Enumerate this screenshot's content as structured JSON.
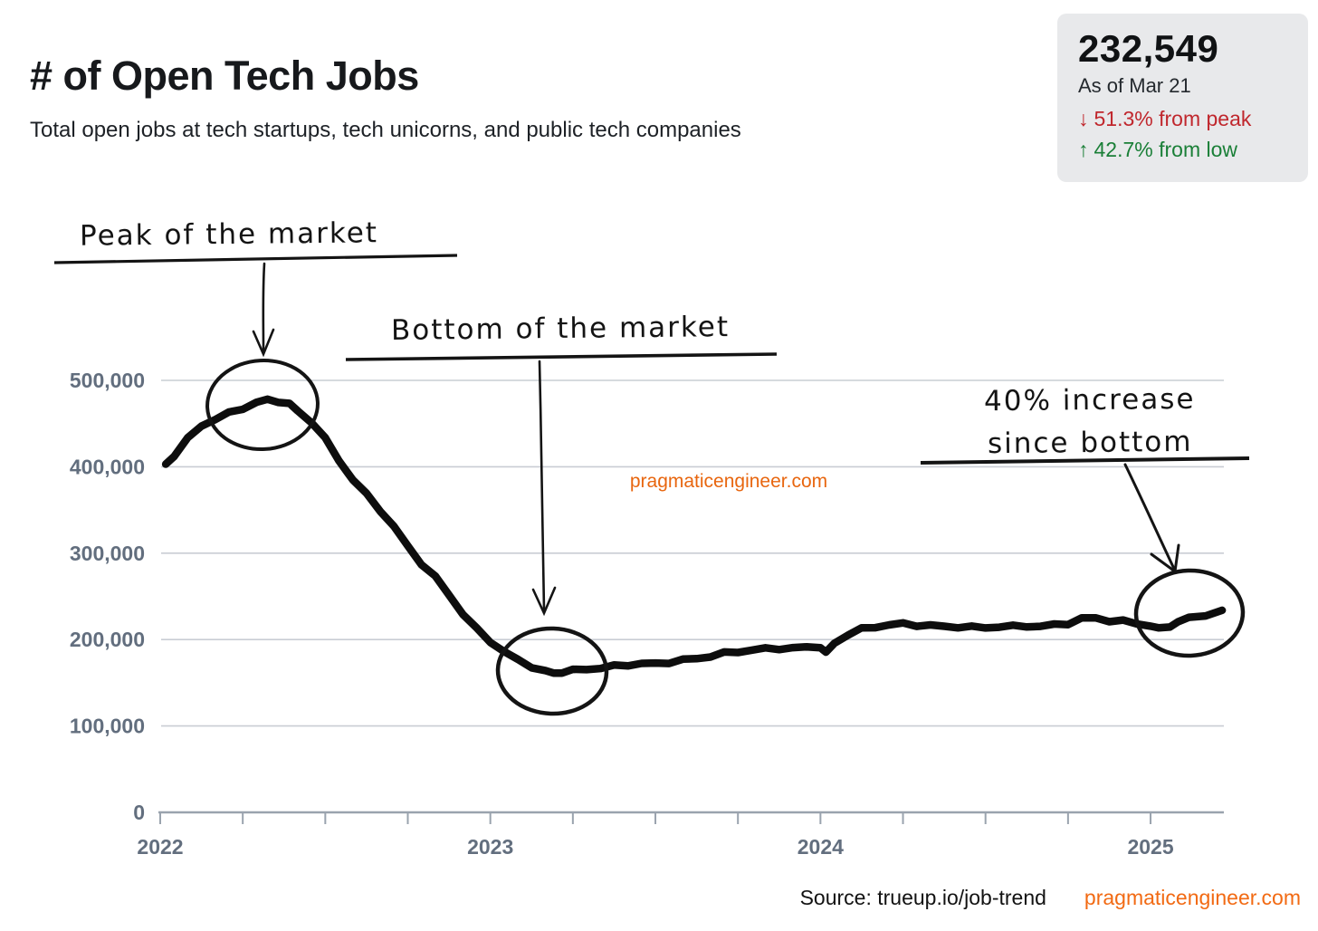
{
  "header": {
    "title": "# of Open Tech Jobs",
    "subtitle": "Total open jobs at tech startups, tech unicorns, and public tech companies"
  },
  "stats_card": {
    "value": "232,549",
    "as_of": "As of Mar 21",
    "down_arrow": "↓",
    "from_peak": "51.3% from peak",
    "up_arrow": "↑",
    "from_low": "42.7% from low",
    "down_color": "#c0272d",
    "up_color": "#1a7f37"
  },
  "annotations": {
    "peak_label": "Peak of the market",
    "bottom_label": "Bottom of the market",
    "increase_label_line1": "40% increase",
    "increase_label_line2": "since bottom"
  },
  "watermark": "pragmaticengineer.com",
  "footer": {
    "source": "Source: trueup.io/job-trend",
    "brand": "pragmaticengineer.com",
    "brand_color": "#f26a13"
  },
  "chart_data": {
    "type": "line",
    "title": "# of Open Tech Jobs",
    "x_unit": "months_since_jan_2022",
    "y_unit": "open_jobs",
    "ylim": [
      0,
      520000
    ],
    "y_values": [
      500000,
      400000,
      300000,
      200000,
      100000,
      0
    ],
    "y_labels": [
      "500,000",
      "400,000",
      "300,000",
      "200,000",
      "100,000",
      "0"
    ],
    "x_years": [
      {
        "label": "2022",
        "month": 0
      },
      {
        "label": "2023",
        "month": 12
      },
      {
        "label": "2024",
        "month": 24
      },
      {
        "label": "2025",
        "month": 36
      }
    ],
    "x_tick_interval_months": 3,
    "x_tick_count": 13,
    "grid": true,
    "legend": "none",
    "series": [
      {
        "name": "Total open tech jobs",
        "points": [
          [
            0.2,
            403000
          ],
          [
            0.5,
            413000
          ],
          [
            1,
            432000
          ],
          [
            1.5,
            448000
          ],
          [
            2,
            455000
          ],
          [
            2.5,
            462000
          ],
          [
            3,
            468000
          ],
          [
            3.5,
            474000
          ],
          [
            3.9,
            477500
          ],
          [
            4.3,
            476000
          ],
          [
            4.7,
            472000
          ],
          [
            5,
            465000
          ],
          [
            5.5,
            452000
          ],
          [
            6,
            432000
          ],
          [
            6.5,
            408000
          ],
          [
            7,
            385000
          ],
          [
            7.5,
            368000
          ],
          [
            8,
            350000
          ],
          [
            8.5,
            330000
          ],
          [
            9,
            308000
          ],
          [
            9.5,
            288000
          ],
          [
            10,
            272000
          ],
          [
            10.5,
            252000
          ],
          [
            11,
            230000
          ],
          [
            11.5,
            212000
          ],
          [
            12,
            198000
          ],
          [
            12.5,
            186000
          ],
          [
            13,
            176000
          ],
          [
            13.5,
            169000
          ],
          [
            14,
            163000
          ],
          [
            14.3,
            161000
          ],
          [
            14.6,
            162500
          ],
          [
            15,
            164000
          ],
          [
            15.5,
            166000
          ],
          [
            16,
            167000
          ],
          [
            16.5,
            169000
          ],
          [
            17,
            171000
          ],
          [
            17.5,
            172000
          ],
          [
            18,
            172000
          ],
          [
            18.5,
            174000
          ],
          [
            19,
            176000
          ],
          [
            19.5,
            178000
          ],
          [
            20,
            181000
          ],
          [
            20.5,
            184000
          ],
          [
            21,
            186000
          ],
          [
            21.5,
            188000
          ],
          [
            22,
            189000
          ],
          [
            22.5,
            190000
          ],
          [
            23,
            190000
          ],
          [
            23.5,
            191000
          ],
          [
            24,
            192000
          ],
          [
            24.2,
            184000
          ],
          [
            24.5,
            196000
          ],
          [
            25,
            206000
          ],
          [
            25.5,
            212000
          ],
          [
            26,
            215000
          ],
          [
            26.5,
            217000
          ],
          [
            27,
            218000
          ],
          [
            27.5,
            217000
          ],
          [
            28,
            216000
          ],
          [
            28.5,
            215000
          ],
          [
            29,
            215000
          ],
          [
            29.5,
            214000
          ],
          [
            30,
            214000
          ],
          [
            30.5,
            215000
          ],
          [
            31,
            215000
          ],
          [
            31.5,
            216000
          ],
          [
            32,
            215000
          ],
          [
            32.5,
            217000
          ],
          [
            33,
            219000
          ],
          [
            33.5,
            224000
          ],
          [
            34,
            225000
          ],
          [
            34.5,
            222000
          ],
          [
            35,
            221000
          ],
          [
            35.5,
            219000
          ],
          [
            36,
            216000
          ],
          [
            36.3,
            212000
          ],
          [
            36.7,
            216000
          ],
          [
            37,
            220000
          ],
          [
            37.4,
            225000
          ],
          [
            38,
            229000
          ],
          [
            38.6,
            232549
          ]
        ]
      }
    ],
    "highlights": {
      "peak": {
        "months_since_jan_2022": 3.9,
        "open_jobs": 477500
      },
      "low": {
        "months_since_jan_2022": 14,
        "open_jobs": 163000
      },
      "latest": {
        "months_since_jan_2022": 38.6,
        "open_jobs": 232549
      }
    }
  }
}
